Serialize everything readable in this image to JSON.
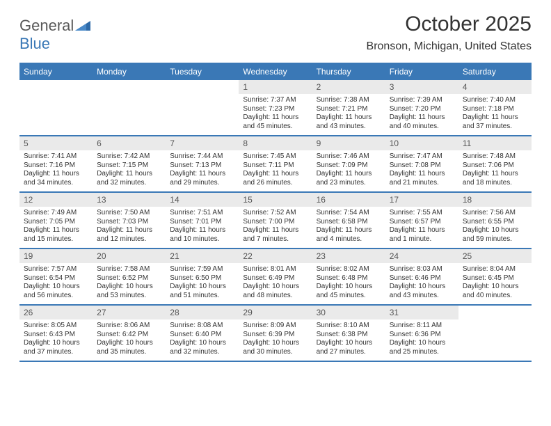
{
  "logo": {
    "line1": "General",
    "line2": "Blue"
  },
  "title": "October 2025",
  "location": "Bronson, Michigan, United States",
  "colors": {
    "header_bg": "#3a78b6",
    "header_text": "#ffffff",
    "daynum_bg": "#eaeaea",
    "page_bg": "#ffffff",
    "body_text": "#333333",
    "logo_gray": "#595959",
    "logo_blue": "#3a78b6"
  },
  "dow": [
    "Sunday",
    "Monday",
    "Tuesday",
    "Wednesday",
    "Thursday",
    "Friday",
    "Saturday"
  ],
  "weeks": [
    [
      {
        "blank": true
      },
      {
        "blank": true
      },
      {
        "blank": true
      },
      {
        "n": "1",
        "rise": "Sunrise: 7:37 AM",
        "set": "Sunset: 7:23 PM",
        "dl": "Daylight: 11 hours and 45 minutes."
      },
      {
        "n": "2",
        "rise": "Sunrise: 7:38 AM",
        "set": "Sunset: 7:21 PM",
        "dl": "Daylight: 11 hours and 43 minutes."
      },
      {
        "n": "3",
        "rise": "Sunrise: 7:39 AM",
        "set": "Sunset: 7:20 PM",
        "dl": "Daylight: 11 hours and 40 minutes."
      },
      {
        "n": "4",
        "rise": "Sunrise: 7:40 AM",
        "set": "Sunset: 7:18 PM",
        "dl": "Daylight: 11 hours and 37 minutes."
      }
    ],
    [
      {
        "n": "5",
        "rise": "Sunrise: 7:41 AM",
        "set": "Sunset: 7:16 PM",
        "dl": "Daylight: 11 hours and 34 minutes."
      },
      {
        "n": "6",
        "rise": "Sunrise: 7:42 AM",
        "set": "Sunset: 7:15 PM",
        "dl": "Daylight: 11 hours and 32 minutes."
      },
      {
        "n": "7",
        "rise": "Sunrise: 7:44 AM",
        "set": "Sunset: 7:13 PM",
        "dl": "Daylight: 11 hours and 29 minutes."
      },
      {
        "n": "8",
        "rise": "Sunrise: 7:45 AM",
        "set": "Sunset: 7:11 PM",
        "dl": "Daylight: 11 hours and 26 minutes."
      },
      {
        "n": "9",
        "rise": "Sunrise: 7:46 AM",
        "set": "Sunset: 7:09 PM",
        "dl": "Daylight: 11 hours and 23 minutes."
      },
      {
        "n": "10",
        "rise": "Sunrise: 7:47 AM",
        "set": "Sunset: 7:08 PM",
        "dl": "Daylight: 11 hours and 21 minutes."
      },
      {
        "n": "11",
        "rise": "Sunrise: 7:48 AM",
        "set": "Sunset: 7:06 PM",
        "dl": "Daylight: 11 hours and 18 minutes."
      }
    ],
    [
      {
        "n": "12",
        "rise": "Sunrise: 7:49 AM",
        "set": "Sunset: 7:05 PM",
        "dl": "Daylight: 11 hours and 15 minutes."
      },
      {
        "n": "13",
        "rise": "Sunrise: 7:50 AM",
        "set": "Sunset: 7:03 PM",
        "dl": "Daylight: 11 hours and 12 minutes."
      },
      {
        "n": "14",
        "rise": "Sunrise: 7:51 AM",
        "set": "Sunset: 7:01 PM",
        "dl": "Daylight: 11 hours and 10 minutes."
      },
      {
        "n": "15",
        "rise": "Sunrise: 7:52 AM",
        "set": "Sunset: 7:00 PM",
        "dl": "Daylight: 11 hours and 7 minutes."
      },
      {
        "n": "16",
        "rise": "Sunrise: 7:54 AM",
        "set": "Sunset: 6:58 PM",
        "dl": "Daylight: 11 hours and 4 minutes."
      },
      {
        "n": "17",
        "rise": "Sunrise: 7:55 AM",
        "set": "Sunset: 6:57 PM",
        "dl": "Daylight: 11 hours and 1 minute."
      },
      {
        "n": "18",
        "rise": "Sunrise: 7:56 AM",
        "set": "Sunset: 6:55 PM",
        "dl": "Daylight: 10 hours and 59 minutes."
      }
    ],
    [
      {
        "n": "19",
        "rise": "Sunrise: 7:57 AM",
        "set": "Sunset: 6:54 PM",
        "dl": "Daylight: 10 hours and 56 minutes."
      },
      {
        "n": "20",
        "rise": "Sunrise: 7:58 AM",
        "set": "Sunset: 6:52 PM",
        "dl": "Daylight: 10 hours and 53 minutes."
      },
      {
        "n": "21",
        "rise": "Sunrise: 7:59 AM",
        "set": "Sunset: 6:50 PM",
        "dl": "Daylight: 10 hours and 51 minutes."
      },
      {
        "n": "22",
        "rise": "Sunrise: 8:01 AM",
        "set": "Sunset: 6:49 PM",
        "dl": "Daylight: 10 hours and 48 minutes."
      },
      {
        "n": "23",
        "rise": "Sunrise: 8:02 AM",
        "set": "Sunset: 6:48 PM",
        "dl": "Daylight: 10 hours and 45 minutes."
      },
      {
        "n": "24",
        "rise": "Sunrise: 8:03 AM",
        "set": "Sunset: 6:46 PM",
        "dl": "Daylight: 10 hours and 43 minutes."
      },
      {
        "n": "25",
        "rise": "Sunrise: 8:04 AM",
        "set": "Sunset: 6:45 PM",
        "dl": "Daylight: 10 hours and 40 minutes."
      }
    ],
    [
      {
        "n": "26",
        "rise": "Sunrise: 8:05 AM",
        "set": "Sunset: 6:43 PM",
        "dl": "Daylight: 10 hours and 37 minutes."
      },
      {
        "n": "27",
        "rise": "Sunrise: 8:06 AM",
        "set": "Sunset: 6:42 PM",
        "dl": "Daylight: 10 hours and 35 minutes."
      },
      {
        "n": "28",
        "rise": "Sunrise: 8:08 AM",
        "set": "Sunset: 6:40 PM",
        "dl": "Daylight: 10 hours and 32 minutes."
      },
      {
        "n": "29",
        "rise": "Sunrise: 8:09 AM",
        "set": "Sunset: 6:39 PM",
        "dl": "Daylight: 10 hours and 30 minutes."
      },
      {
        "n": "30",
        "rise": "Sunrise: 8:10 AM",
        "set": "Sunset: 6:38 PM",
        "dl": "Daylight: 10 hours and 27 minutes."
      },
      {
        "n": "31",
        "rise": "Sunrise: 8:11 AM",
        "set": "Sunset: 6:36 PM",
        "dl": "Daylight: 10 hours and 25 minutes."
      },
      {
        "blank": true
      }
    ]
  ]
}
